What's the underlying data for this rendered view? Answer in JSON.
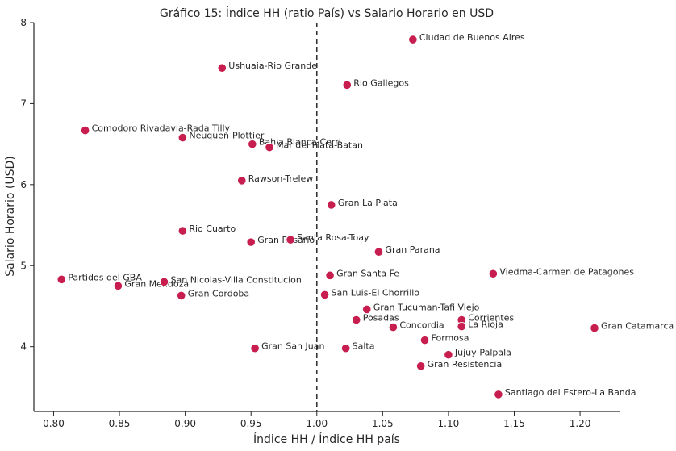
{
  "chart_data": {
    "type": "scatter",
    "title": "Gráfico 15: Índice HH (ratio País) vs Salario Horario en USD",
    "xlabel": "Índice HH / Índice HH país",
    "ylabel": "Salario Horario (USD)",
    "xlim": [
      0.785,
      1.23
    ],
    "ylim": [
      3.2,
      8.0
    ],
    "xticks": [
      "0.80",
      "0.85",
      "0.90",
      "0.95",
      "1.00",
      "1.05",
      "1.10",
      "1.15",
      "1.20"
    ],
    "yticks": [
      "4",
      "5",
      "6",
      "7",
      "8"
    ],
    "reference_line": {
      "x": 1.0,
      "style": "dashed"
    },
    "marker_color": "#c71e4f",
    "points": [
      {
        "label": "Ciudad de Buenos Aires",
        "x": 1.073,
        "y": 7.79
      },
      {
        "label": "Ushuaia-Rio Grande",
        "x": 0.928,
        "y": 7.44
      },
      {
        "label": "Rio Gallegos",
        "x": 1.023,
        "y": 7.23
      },
      {
        "label": "Comodoro Rivadavia-Rada Tilly",
        "x": 0.824,
        "y": 6.67
      },
      {
        "label": "Neuquen-Plottier",
        "x": 0.898,
        "y": 6.58
      },
      {
        "label": "Bahia Blanca-Cerri",
        "x": 0.951,
        "y": 6.5
      },
      {
        "label": "Mar del Plata-Batan",
        "x": 0.964,
        "y": 6.46
      },
      {
        "label": "Rawson-Trelew",
        "x": 0.943,
        "y": 6.05
      },
      {
        "label": "Gran La Plata",
        "x": 1.011,
        "y": 5.75
      },
      {
        "label": "Rio Cuarto",
        "x": 0.898,
        "y": 5.43
      },
      {
        "label": "Gran Rosario",
        "x": 0.95,
        "y": 5.29
      },
      {
        "label": "Santa Rosa-Toay",
        "x": 0.98,
        "y": 5.32
      },
      {
        "label": "Gran Parana",
        "x": 1.047,
        "y": 5.17
      },
      {
        "label": "Viedma-Carmen de Patagones",
        "x": 1.134,
        "y": 4.9
      },
      {
        "label": "Gran Santa Fe",
        "x": 1.01,
        "y": 4.88
      },
      {
        "label": "Partidos del GBA",
        "x": 0.806,
        "y": 4.83
      },
      {
        "label": "Gran Mendoza",
        "x": 0.849,
        "y": 4.75
      },
      {
        "label": "San Nicolas-Villa Constitucion",
        "x": 0.884,
        "y": 4.8
      },
      {
        "label": "Gran Cordoba",
        "x": 0.897,
        "y": 4.63
      },
      {
        "label": "San Luis-El Chorrillo",
        "x": 1.006,
        "y": 4.64
      },
      {
        "label": "Gran Tucuman-Tafi Viejo",
        "x": 1.038,
        "y": 4.46
      },
      {
        "label": "Posadas",
        "x": 1.03,
        "y": 4.33
      },
      {
        "label": "Corrientes",
        "x": 1.11,
        "y": 4.33
      },
      {
        "label": "Concordia",
        "x": 1.058,
        "y": 4.24
      },
      {
        "label": "La Rioja",
        "x": 1.11,
        "y": 4.25
      },
      {
        "label": "Gran Catamarca",
        "x": 1.211,
        "y": 4.23
      },
      {
        "label": "Formosa",
        "x": 1.082,
        "y": 4.08
      },
      {
        "label": "Gran San Juan",
        "x": 0.953,
        "y": 3.98
      },
      {
        "label": "Salta",
        "x": 1.022,
        "y": 3.98
      },
      {
        "label": "Jujuy-Palpala",
        "x": 1.1,
        "y": 3.9
      },
      {
        "label": "Gran Resistencia",
        "x": 1.079,
        "y": 3.76
      },
      {
        "label": "Santiago del Estero-La Banda",
        "x": 1.138,
        "y": 3.41
      }
    ]
  }
}
